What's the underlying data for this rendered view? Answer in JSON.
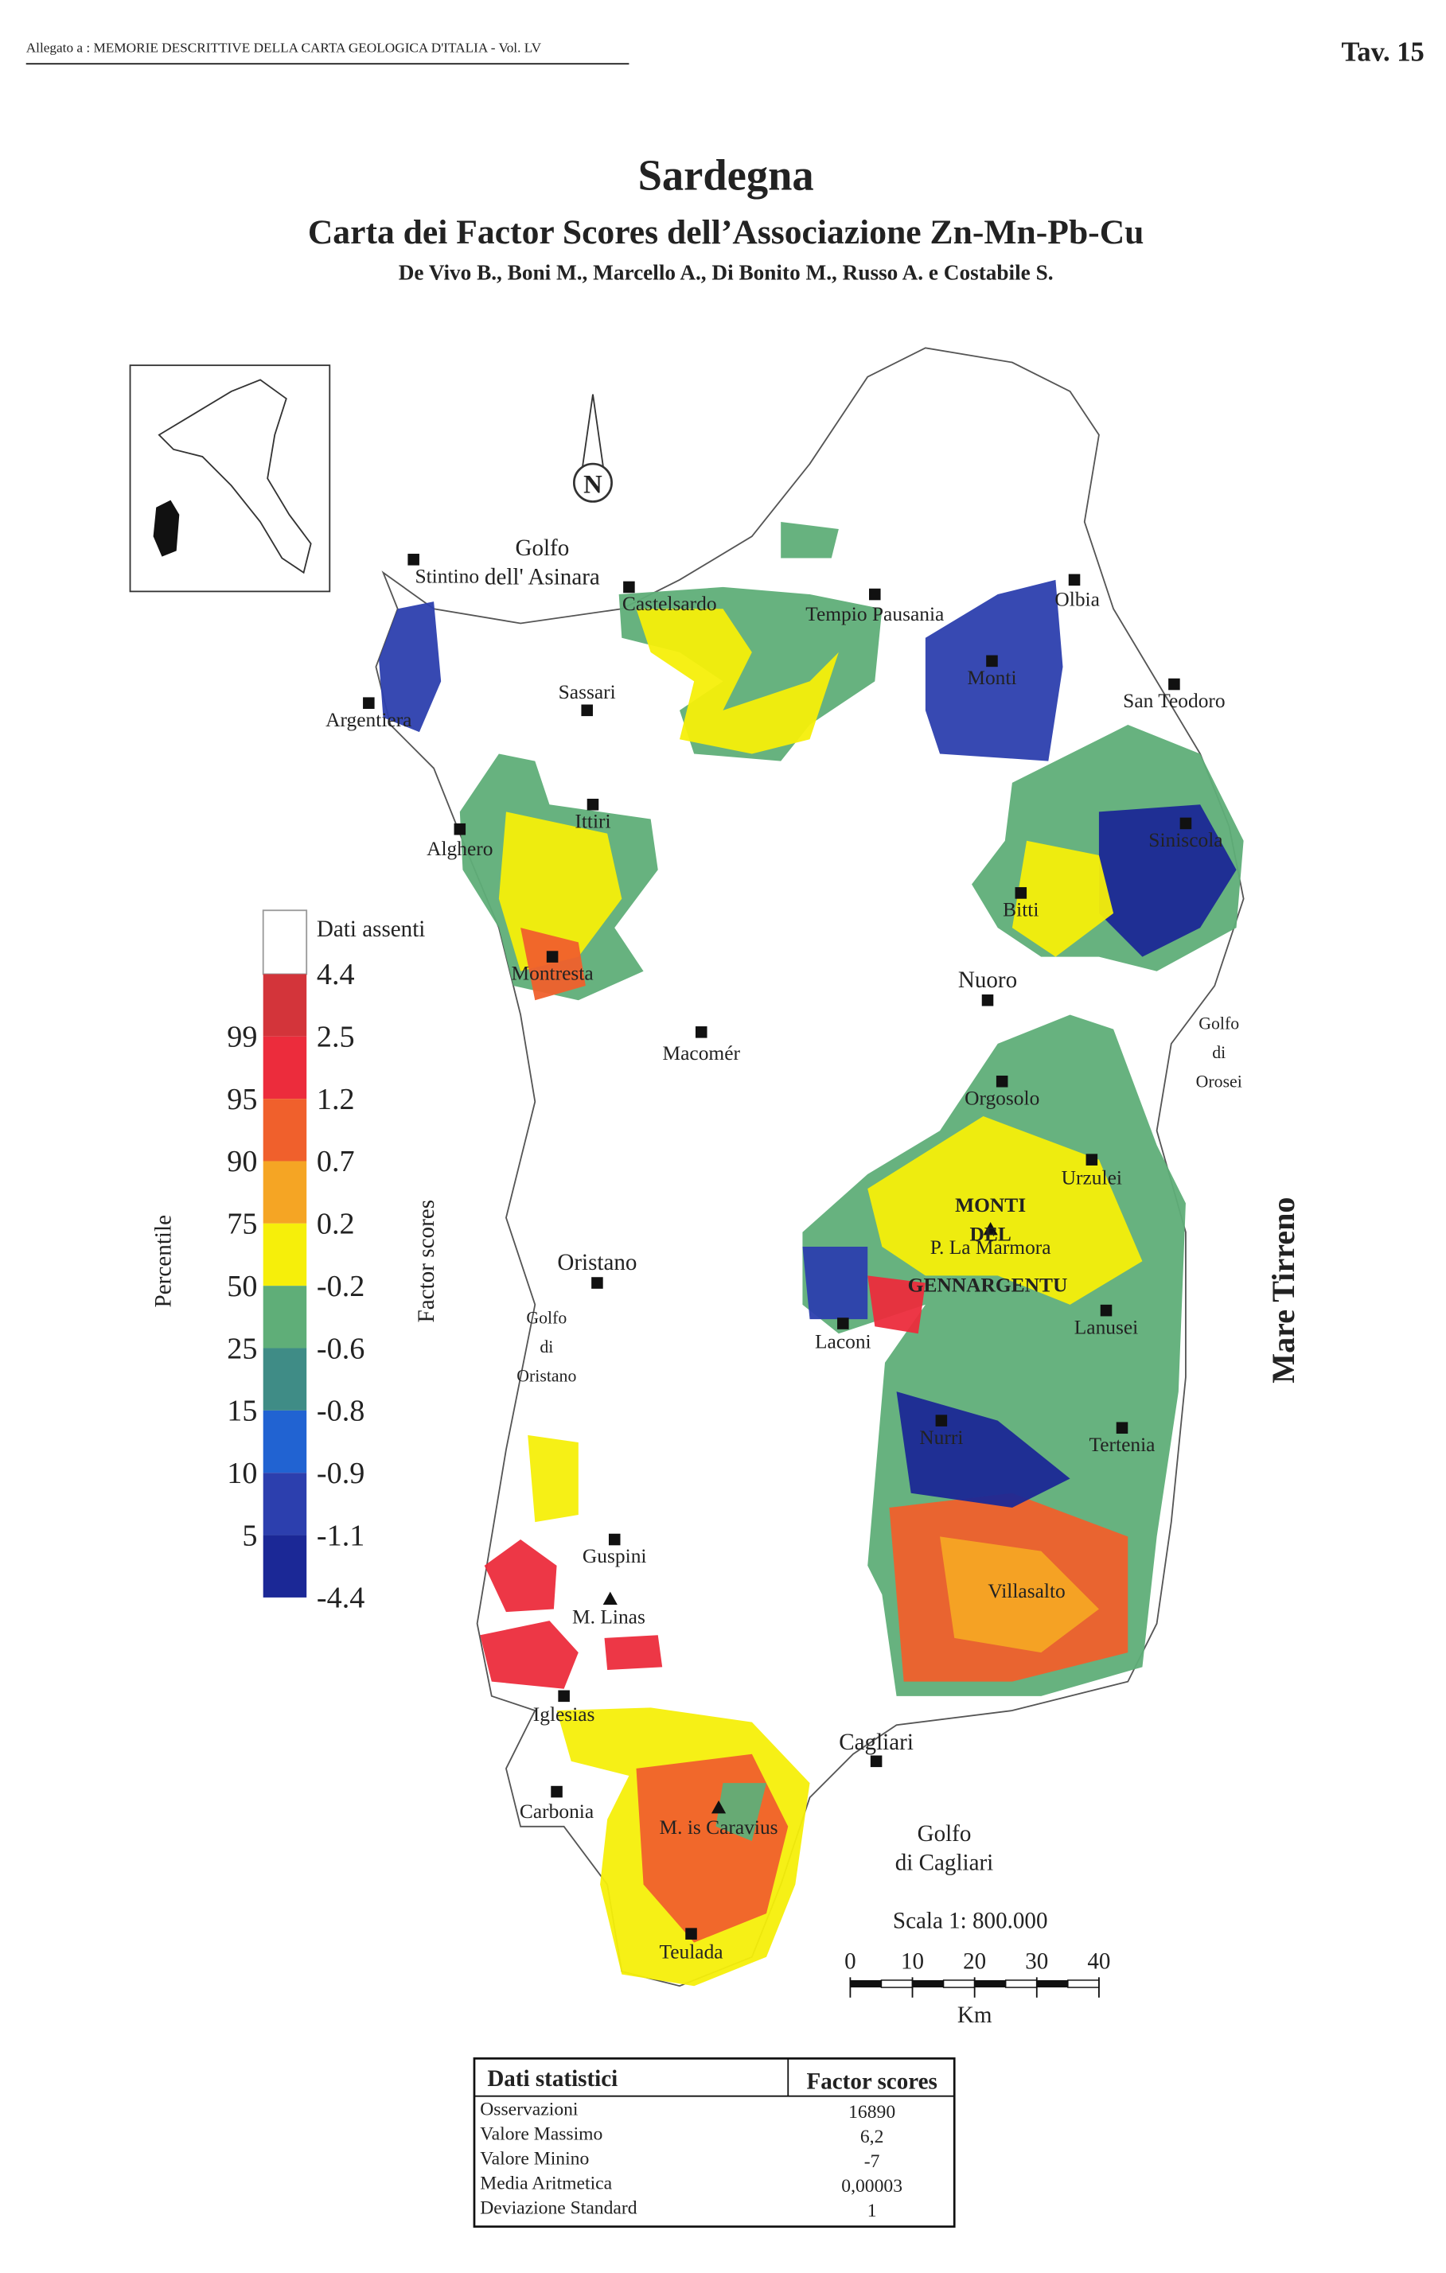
{
  "header": {
    "note": "Allegato a : MEMORIE DESCRITTIVE DELLA CARTA GEOLOGICA D'ITALIA - Vol. LV",
    "plate": "Tav. 15"
  },
  "title": {
    "region": "Sardegna",
    "subtitle": "Carta dei Factor Scores dell’Associazione Zn-Mn-Pb-Cu",
    "authors": "De Vivo B., Boni M., Marcello A., Di Bonito M., Russo A. e Costabile S."
  },
  "north": "N",
  "places": [
    [
      "Stintino"
    ],
    [
      "Golfo",
      "dell' Asinara"
    ],
    [
      "Castelsardo"
    ],
    [
      "Tempio Pausania"
    ],
    [
      "Olbia"
    ],
    [
      "Monti"
    ],
    [
      "San Teodoro"
    ],
    [
      "Sassari"
    ],
    [
      "Argentiera"
    ],
    [
      "Ittiri"
    ],
    [
      "Alghero"
    ],
    [
      "Siniscola"
    ],
    [
      "Bitti"
    ],
    [
      "Montresta"
    ],
    [
      "Nuoro"
    ],
    [
      "Macomér"
    ],
    [
      "Golfo",
      "di",
      "Orosei"
    ],
    [
      "Orgosolo"
    ],
    [
      "Urzulei"
    ],
    [
      "MONTI",
      "DEL"
    ],
    [
      "P. La Marmora"
    ],
    [
      "GENNARGENTU"
    ],
    [
      "Lanusei"
    ],
    [
      "Oristano"
    ],
    [
      "Golfo",
      "di",
      "Oristano"
    ],
    [
      "Laconi"
    ],
    [
      "Nurri"
    ],
    [
      "Tertenia"
    ],
    [
      "Guspini"
    ],
    [
      "M. Linas"
    ],
    [
      "Villasalto"
    ],
    [
      "Iglesias"
    ],
    [
      "Cagliari"
    ],
    [
      "Carbonia"
    ],
    [
      "M. is Caravius"
    ],
    [
      "Golfo",
      "di Cagliari"
    ],
    [
      "Teulada"
    ],
    [
      "Mare Tirreno"
    ]
  ],
  "legend": {
    "no_data": "Dati assenti",
    "percentile_title": "Percentile",
    "score_title": "Factor scores",
    "scores": [
      4.4,
      2.5,
      1.2,
      0.7,
      0.2,
      -0.2,
      -0.6,
      -0.8,
      -0.9,
      -1.1,
      -4.4
    ],
    "percentiles": [
      99,
      95,
      90,
      75,
      50,
      25,
      15,
      10,
      5
    ],
    "colors": [
      "#d3343a",
      "#ec2c3c",
      "#f0602c",
      "#f5a524",
      "#f6ef0a",
      "#5fae78",
      "#3f8c86",
      "#2163d2",
      "#2c3fae",
      "#1b2896"
    ]
  },
  "scale": {
    "label": "Scala 1: 800.000",
    "ticks": [
      0,
      10,
      20,
      30,
      40
    ],
    "unit": "Km"
  },
  "stats": {
    "title": "Dati statistici",
    "column": "Factor scores",
    "rows": [
      [
        "Osservazioni",
        16890
      ],
      [
        "Valore Massimo",
        "6,2"
      ],
      [
        "Valore Minino",
        -7
      ],
      [
        "Media Aritmetica",
        "0,00003"
      ],
      [
        "Deviazione Standard",
        1
      ]
    ]
  }
}
